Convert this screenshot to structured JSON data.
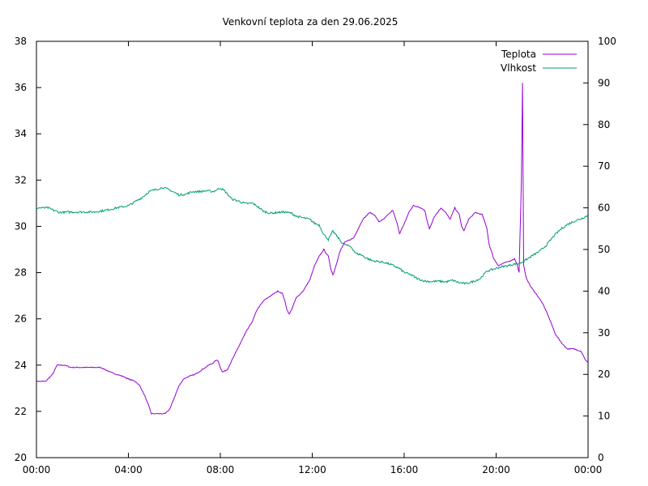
{
  "chart_data": {
    "type": "line",
    "title": "Venkovní teplota za den 29.06.2025",
    "x_ticks": [
      "00:00",
      "04:00",
      "08:00",
      "12:00",
      "16:00",
      "20:00",
      "00:00"
    ],
    "x_range_hours": [
      0,
      24
    ],
    "y_left_range": [
      20,
      38
    ],
    "y_left_ticks": [
      "20",
      "22",
      "24",
      "26",
      "28",
      "30",
      "32",
      "34",
      "36",
      "38"
    ],
    "y_right_range": [
      0,
      100
    ],
    "y_right_ticks": [
      "0",
      "10",
      "20",
      "30",
      "40",
      "50",
      "60",
      "70",
      "80",
      "90",
      "100"
    ],
    "grid": false,
    "legend_position": "top-right",
    "series": [
      {
        "name": "Teplota",
        "axis": "left",
        "color": "#9400d3",
        "points": [
          [
            0,
            23.3
          ],
          [
            0.4,
            23.3
          ],
          [
            0.7,
            23.6
          ],
          [
            0.9,
            24.0
          ],
          [
            1.2,
            24.0
          ],
          [
            1.5,
            23.9
          ],
          [
            2.0,
            23.9
          ],
          [
            2.5,
            23.9
          ],
          [
            2.8,
            23.9
          ],
          [
            3.0,
            23.8
          ],
          [
            3.2,
            23.7
          ],
          [
            3.5,
            23.6
          ],
          [
            3.8,
            23.5
          ],
          [
            4.0,
            23.4
          ],
          [
            4.3,
            23.3
          ],
          [
            4.5,
            23.1
          ],
          [
            4.7,
            22.7
          ],
          [
            4.9,
            22.2
          ],
          [
            5.0,
            21.9
          ],
          [
            5.3,
            21.9
          ],
          [
            5.6,
            21.9
          ],
          [
            5.8,
            22.1
          ],
          [
            6.0,
            22.6
          ],
          [
            6.2,
            23.1
          ],
          [
            6.4,
            23.4
          ],
          [
            6.6,
            23.5
          ],
          [
            6.9,
            23.6
          ],
          [
            7.2,
            23.8
          ],
          [
            7.5,
            24.0
          ],
          [
            7.7,
            24.1
          ],
          [
            7.8,
            24.2
          ],
          [
            7.9,
            24.2
          ],
          [
            8.0,
            23.9
          ],
          [
            8.1,
            23.7
          ],
          [
            8.3,
            23.8
          ],
          [
            8.5,
            24.2
          ],
          [
            8.8,
            24.8
          ],
          [
            9.1,
            25.4
          ],
          [
            9.4,
            25.9
          ],
          [
            9.6,
            26.4
          ],
          [
            9.9,
            26.8
          ],
          [
            10.2,
            27.0
          ],
          [
            10.5,
            27.2
          ],
          [
            10.7,
            27.1
          ],
          [
            10.8,
            26.8
          ],
          [
            10.9,
            26.4
          ],
          [
            11.0,
            26.2
          ],
          [
            11.1,
            26.4
          ],
          [
            11.3,
            26.9
          ],
          [
            11.6,
            27.2
          ],
          [
            11.9,
            27.7
          ],
          [
            12.1,
            28.3
          ],
          [
            12.3,
            28.7
          ],
          [
            12.5,
            29.0
          ],
          [
            12.7,
            28.7
          ],
          [
            12.8,
            28.2
          ],
          [
            12.9,
            27.9
          ],
          [
            13.0,
            28.2
          ],
          [
            13.2,
            28.9
          ],
          [
            13.4,
            29.3
          ],
          [
            13.6,
            29.4
          ],
          [
            13.8,
            29.5
          ],
          [
            14.0,
            29.9
          ],
          [
            14.2,
            30.3
          ],
          [
            14.5,
            30.6
          ],
          [
            14.7,
            30.5
          ],
          [
            14.9,
            30.2
          ],
          [
            15.1,
            30.3
          ],
          [
            15.3,
            30.5
          ],
          [
            15.5,
            30.7
          ],
          [
            15.7,
            30.1
          ],
          [
            15.8,
            29.7
          ],
          [
            16.0,
            30.1
          ],
          [
            16.2,
            30.6
          ],
          [
            16.4,
            30.9
          ],
          [
            16.7,
            30.8
          ],
          [
            16.9,
            30.7
          ],
          [
            17.0,
            30.2
          ],
          [
            17.1,
            29.9
          ],
          [
            17.3,
            30.4
          ],
          [
            17.6,
            30.8
          ],
          [
            17.8,
            30.6
          ],
          [
            18.0,
            30.3
          ],
          [
            18.2,
            30.8
          ],
          [
            18.4,
            30.5
          ],
          [
            18.5,
            30.0
          ],
          [
            18.6,
            29.8
          ],
          [
            18.8,
            30.3
          ],
          [
            19.1,
            30.6
          ],
          [
            19.4,
            30.5
          ],
          [
            19.6,
            29.9
          ],
          [
            19.7,
            29.2
          ],
          [
            19.9,
            28.6
          ],
          [
            20.1,
            28.3
          ],
          [
            20.3,
            28.4
          ],
          [
            20.6,
            28.5
          ],
          [
            20.8,
            28.6
          ],
          [
            20.9,
            28.4
          ],
          [
            21.0,
            28.0
          ],
          [
            21.1,
            32.0
          ],
          [
            21.15,
            36.2
          ],
          [
            21.2,
            28.3
          ],
          [
            21.3,
            27.8
          ],
          [
            21.5,
            27.4
          ],
          [
            21.8,
            27.0
          ],
          [
            22.0,
            26.7
          ],
          [
            22.2,
            26.3
          ],
          [
            22.4,
            25.8
          ],
          [
            22.6,
            25.3
          ],
          [
            22.9,
            24.9
          ],
          [
            23.1,
            24.7
          ],
          [
            23.4,
            24.7
          ],
          [
            23.7,
            24.6
          ],
          [
            23.9,
            24.2
          ],
          [
            24.0,
            24.1
          ]
        ]
      },
      {
        "name": "Vlhkost",
        "axis": "right",
        "color": "#009e73",
        "points": [
          [
            0,
            60.0
          ],
          [
            0.5,
            60.0
          ],
          [
            0.8,
            59.3
          ],
          [
            1.0,
            58.9
          ],
          [
            1.5,
            59.0
          ],
          [
            2.0,
            59.0
          ],
          [
            2.5,
            59.0
          ],
          [
            3.0,
            59.4
          ],
          [
            3.5,
            60.0
          ],
          [
            4.0,
            60.5
          ],
          [
            4.3,
            61.5
          ],
          [
            4.6,
            62.5
          ],
          [
            4.9,
            63.9
          ],
          [
            5.2,
            64.4
          ],
          [
            5.5,
            64.9
          ],
          [
            5.8,
            64.3
          ],
          [
            6.2,
            63.1
          ],
          [
            6.5,
            63.3
          ],
          [
            6.8,
            63.9
          ],
          [
            7.1,
            63.9
          ],
          [
            7.4,
            64.1
          ],
          [
            7.7,
            63.9
          ],
          [
            8.0,
            64.8
          ],
          [
            8.2,
            64.0
          ],
          [
            8.5,
            62.1
          ],
          [
            8.8,
            61.6
          ],
          [
            9.1,
            61.0
          ],
          [
            9.4,
            61.1
          ],
          [
            9.6,
            60.4
          ],
          [
            9.9,
            59.1
          ],
          [
            10.2,
            58.7
          ],
          [
            10.5,
            58.9
          ],
          [
            10.8,
            59.0
          ],
          [
            11.1,
            58.7
          ],
          [
            11.3,
            58.0
          ],
          [
            11.6,
            57.6
          ],
          [
            11.9,
            57.2
          ],
          [
            12.1,
            56.3
          ],
          [
            12.3,
            55.9
          ],
          [
            12.5,
            53.6
          ],
          [
            12.7,
            52.4
          ],
          [
            12.9,
            54.4
          ],
          [
            13.1,
            53.0
          ],
          [
            13.3,
            51.6
          ],
          [
            13.5,
            51.0
          ],
          [
            13.7,
            50.6
          ],
          [
            13.9,
            49.0
          ],
          [
            14.1,
            48.8
          ],
          [
            14.3,
            48.1
          ],
          [
            14.6,
            47.3
          ],
          [
            14.9,
            47.1
          ],
          [
            15.2,
            46.8
          ],
          [
            15.5,
            46.2
          ],
          [
            15.8,
            45.4
          ],
          [
            16.0,
            44.5
          ],
          [
            16.3,
            43.9
          ],
          [
            16.6,
            42.9
          ],
          [
            16.9,
            42.4
          ],
          [
            17.2,
            42.3
          ],
          [
            17.5,
            42.4
          ],
          [
            17.8,
            42.2
          ],
          [
            18.1,
            42.6
          ],
          [
            18.4,
            42.0
          ],
          [
            18.7,
            41.8
          ],
          [
            19.0,
            42.3
          ],
          [
            19.3,
            43.0
          ],
          [
            19.6,
            44.8
          ],
          [
            19.9,
            45.3
          ],
          [
            20.2,
            45.8
          ],
          [
            20.5,
            46.1
          ],
          [
            20.8,
            46.5
          ],
          [
            21.0,
            46.6
          ],
          [
            21.3,
            47.5
          ],
          [
            21.6,
            48.6
          ],
          [
            21.9,
            49.6
          ],
          [
            22.2,
            51.1
          ],
          [
            22.5,
            53.2
          ],
          [
            22.8,
            54.8
          ],
          [
            23.1,
            56.0
          ],
          [
            23.4,
            56.8
          ],
          [
            23.7,
            57.4
          ],
          [
            24.0,
            58.2
          ]
        ]
      }
    ]
  }
}
